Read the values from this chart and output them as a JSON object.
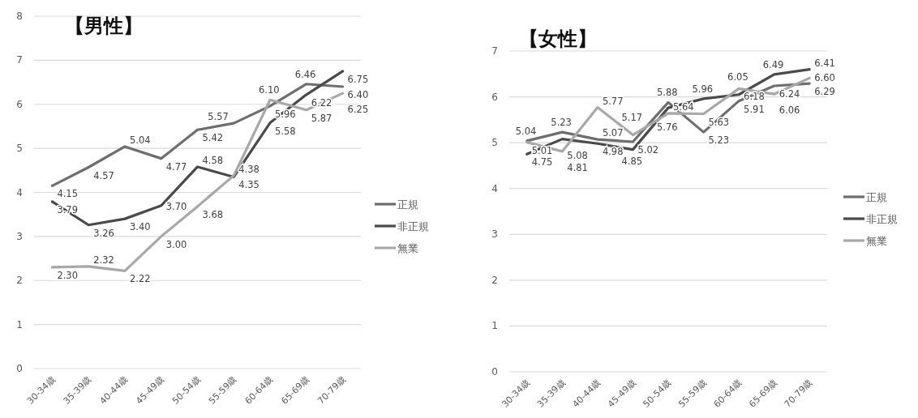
{
  "chart_data": [
    {
      "type": "line",
      "title": "【男性】",
      "categories": [
        "30-34歳",
        "35-39歳",
        "40-44歳",
        "45-49歳",
        "50-54歳",
        "55-59歳",
        "60-64歳",
        "65-69歳",
        "70-79歳"
      ],
      "ylim": [
        0,
        8
      ],
      "yticks": [
        0,
        1,
        2,
        3,
        4,
        5,
        6,
        7,
        8
      ],
      "grid": "y",
      "legend": "right",
      "line_style": "solid",
      "series": [
        {
          "name": "正規",
          "color": "#6e6e6e",
          "values": [
            4.15,
            4.57,
            5.04,
            4.77,
            5.42,
            5.57,
            5.96,
            6.46,
            6.4
          ],
          "value_labels": [
            "4.15",
            "4.57",
            "5.04",
            "4.77",
            "5.42",
            "5.57",
            "5.96",
            "6.46",
            "6.40"
          ]
        },
        {
          "name": "非正規",
          "color": "#4a4a4a",
          "values": [
            3.79,
            3.26,
            3.4,
            3.7,
            4.58,
            4.35,
            5.58,
            6.22,
            6.75
          ],
          "value_labels": [
            "3.79",
            "3.26",
            "3.40",
            "3.70",
            "4.58",
            "4.35",
            "5.58",
            "6.22",
            "6.75"
          ]
        },
        {
          "name": "無業",
          "color": "#a8a8a8",
          "values": [
            2.3,
            2.32,
            2.22,
            3.0,
            3.68,
            4.38,
            6.1,
            5.87,
            6.25
          ],
          "value_labels": [
            "2.30",
            "2.32",
            "2.22",
            "3.00",
            "3.68",
            "4.38",
            "6.10",
            "5.87",
            "6.25"
          ]
        }
      ]
    },
    {
      "type": "line",
      "title": "【女性】",
      "categories": [
        "30-34歳",
        "35-39歳",
        "40-44歳",
        "45-49歳",
        "50-54歳",
        "55-59歳",
        "60-64歳",
        "65-69歳",
        "70-79歳"
      ],
      "ylim": [
        0,
        7
      ],
      "yticks": [
        0,
        1,
        2,
        3,
        4,
        5,
        6,
        7
      ],
      "grid": "y",
      "legend": "right",
      "line_style": "solid",
      "series": [
        {
          "name": "正規",
          "color": "#6e6e6e",
          "values": [
            5.04,
            5.23,
            5.07,
            5.02,
            5.88,
            5.23,
            5.91,
            6.24,
            6.29
          ],
          "value_labels": [
            "5.04",
            "5.23",
            "5.07",
            "5.02",
            "5.88",
            "5.23",
            "5.91",
            "6.24",
            "6.29"
          ]
        },
        {
          "name": "非正規",
          "color": "#4a4a4a",
          "values": [
            4.75,
            5.08,
            4.98,
            4.85,
            5.76,
            5.96,
            6.05,
            6.49,
            6.6
          ],
          "value_labels": [
            "4.75",
            "5.08",
            "4.98",
            "4.85",
            "5.76",
            "5.96",
            "6.05",
            "6.49",
            "6.60"
          ]
        },
        {
          "name": "無業",
          "color": "#a8a8a8",
          "values": [
            5.01,
            4.81,
            5.77,
            5.17,
            5.64,
            5.63,
            6.18,
            6.06,
            6.41
          ],
          "value_labels": [
            "5.01",
            "4.81",
            "5.77",
            "5.17",
            "5.64",
            "5.63",
            "6.18",
            "6.06",
            "6.41"
          ]
        }
      ]
    }
  ]
}
